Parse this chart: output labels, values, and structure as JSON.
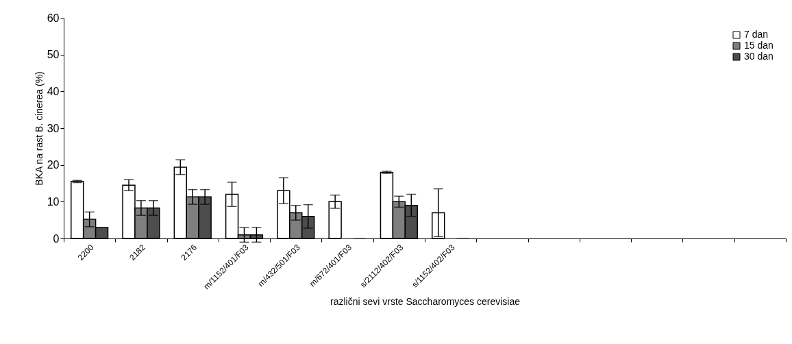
{
  "chart_data": {
    "type": "bar",
    "xlabel": "različni sevi vrste Saccharomyces cerevisiae",
    "ylabel": "BKA na rast B. cinerea (%)",
    "categories": [
      "2200",
      "2182",
      "2176",
      "m/1152/401/F03",
      "m/432/501/F03",
      "m/672/401/F03",
      "s/2112/402/F03",
      "s/1152/402/F03",
      null,
      null,
      null,
      null,
      null,
      null
    ],
    "series": [
      {
        "name": "7 dan",
        "color": "#ffffff",
        "values": [
          15.5,
          14.5,
          19.4,
          12,
          13,
          10,
          18,
          7,
          null,
          null,
          null,
          null,
          null,
          null
        ],
        "errors": [
          0.3,
          1.5,
          2,
          3.3,
          3.5,
          1.8,
          0.3,
          6.5,
          null,
          null,
          null,
          null,
          null,
          null
        ]
      },
      {
        "name": "15 dan",
        "color": "#7f7f7f",
        "values": [
          5.2,
          8.3,
          11.3,
          1,
          7,
          0,
          10,
          0,
          null,
          null,
          null,
          null,
          null,
          null
        ],
        "errors": [
          2,
          2,
          2,
          2,
          2,
          null,
          1.5,
          null,
          null,
          null,
          null,
          null,
          null,
          null
        ]
      },
      {
        "name": "30 dan",
        "color": "#4d4d4d",
        "values": [
          3,
          8.3,
          11.3,
          1,
          6,
          0,
          9,
          0,
          null,
          null,
          null,
          null,
          null,
          null
        ],
        "errors": [
          null,
          2,
          2,
          2,
          3.2,
          null,
          3,
          null,
          null,
          null,
          null,
          null,
          null,
          null
        ]
      }
    ],
    "ylim": [
      0,
      60
    ],
    "yticks": [
      0,
      10,
      20,
      30,
      40,
      50,
      60
    ],
    "grid": false,
    "legend": "top right"
  }
}
